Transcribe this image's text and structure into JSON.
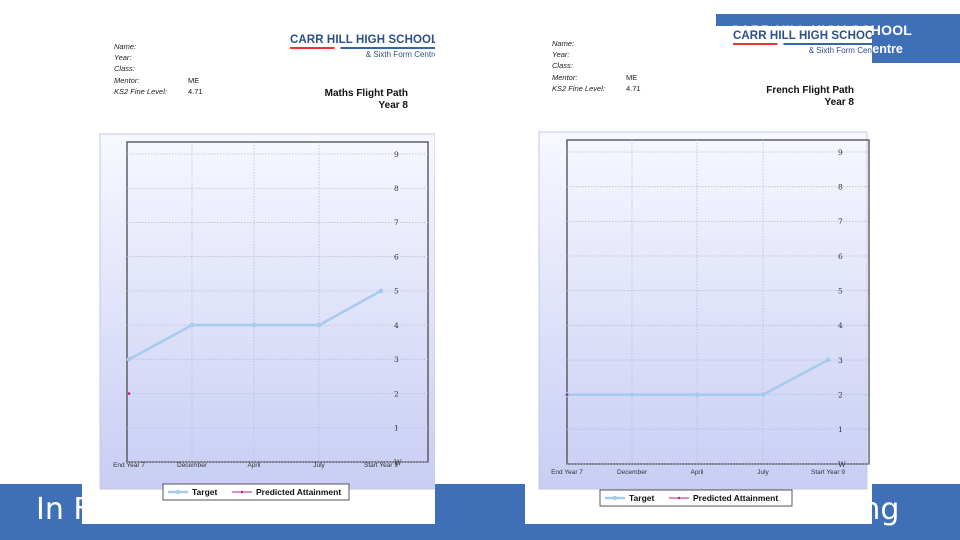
{
  "banner": {
    "school": "CARR HILL HIGH SCHOOL",
    "sub": "& Sixth Form Centre"
  },
  "bottom": {
    "left_text": "In F",
    "right_text": "ong"
  },
  "colors": {
    "accent": "#3f6fb6",
    "target": "#a7cbeb",
    "predicted": "#c2187a",
    "plot_bg_top": "#f7f8ff",
    "plot_bg_bottom": "#c8cdf4"
  },
  "sheets": [
    {
      "info": [
        {
          "label": "Name:",
          "value": ""
        },
        {
          "label": "Year:",
          "value": ""
        },
        {
          "label": "Class:",
          "value": ""
        },
        {
          "label": "Mentor:",
          "value": "ME"
        },
        {
          "label": "KS2 Fine Level:",
          "value": "4.71"
        }
      ],
      "logo": {
        "line1": "CARR HILL HIGH SCHOOL",
        "line2": "& Sixth Form Centre"
      },
      "title": "Maths Flight Path",
      "subtitle": "Year 8"
    },
    {
      "info": [
        {
          "label": "Name:",
          "value": ""
        },
        {
          "label": "Year:",
          "value": ""
        },
        {
          "label": "Class:",
          "value": ""
        },
        {
          "label": "Mentor:",
          "value": "ME"
        },
        {
          "label": "KS2 Fine Level:",
          "value": "4.71"
        }
      ],
      "logo": {
        "line1": "CARR HILL HIGH SCHOOL",
        "line2": "& Sixth Form Centre"
      },
      "title": "French Flight Path",
      "subtitle": "Year 8"
    }
  ],
  "chart_data": [
    {
      "type": "line",
      "title": "Maths Flight Path",
      "categories": [
        "End Year 7",
        "December",
        "April",
        "July",
        "Start Year 9"
      ],
      "y_ticks": [
        "W",
        "1",
        "2",
        "3",
        "4",
        "5",
        "6",
        "7",
        "8",
        "9"
      ],
      "ylim": [
        0,
        9
      ],
      "grid": true,
      "legend_position": "bottom",
      "series": [
        {
          "name": "Target",
          "values": [
            3,
            4,
            4,
            4,
            5
          ]
        },
        {
          "name": "Predicted Attainment",
          "values": [
            2,
            null,
            null,
            null,
            null
          ]
        }
      ]
    },
    {
      "type": "line",
      "title": "French Flight Path",
      "categories": [
        "End Year 7",
        "December",
        "April",
        "July",
        "Start Year 9"
      ],
      "y_ticks": [
        "W",
        "1",
        "2",
        "3",
        "4",
        "5",
        "6",
        "7",
        "8",
        "9"
      ],
      "ylim": [
        0,
        9
      ],
      "grid": true,
      "legend_position": "bottom",
      "series": [
        {
          "name": "Target",
          "values": [
            2,
            2,
            2,
            2,
            3
          ]
        },
        {
          "name": "Predicted Attainment",
          "values": [
            2,
            null,
            null,
            null,
            null
          ]
        }
      ]
    }
  ]
}
